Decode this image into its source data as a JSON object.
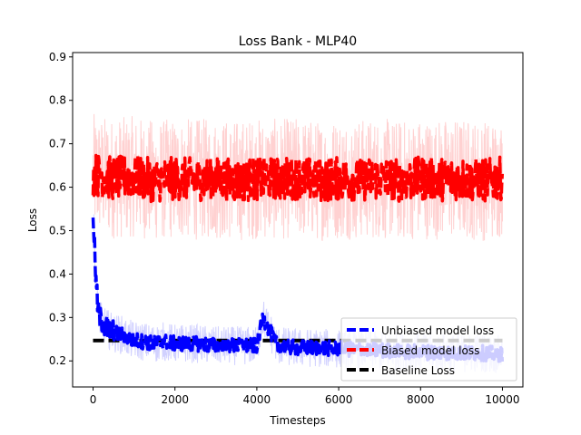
{
  "chart_data": {
    "type": "line",
    "title": "Loss Bank - MLP40",
    "xlabel": "Timesteps",
    "ylabel": "Loss",
    "xlim": [
      -500,
      10500
    ],
    "ylim": [
      0.14,
      0.91
    ],
    "xticks": [
      0,
      2000,
      4000,
      6000,
      8000,
      10000
    ],
    "yticks": [
      0.2,
      0.3,
      0.4,
      0.5,
      0.6,
      0.7,
      0.8,
      0.9
    ],
    "grid": false,
    "legend": {
      "placement": "lower-right"
    },
    "series": [
      {
        "name": "Unbiased model loss",
        "color": "#0000ff",
        "style": "dashed",
        "x": [
          0,
          50,
          100,
          150,
          200,
          300,
          400,
          500,
          700,
          900,
          1200,
          1500,
          1700,
          2000,
          2500,
          3000,
          3500,
          4000,
          4150,
          4500,
          5000,
          5500,
          6000,
          6500,
          7000,
          7500,
          8000,
          8500,
          9000,
          9500,
          10000
        ],
        "values": [
          0.55,
          0.42,
          0.34,
          0.3,
          0.29,
          0.28,
          0.27,
          0.265,
          0.26,
          0.25,
          0.245,
          0.24,
          0.245,
          0.24,
          0.24,
          0.235,
          0.235,
          0.235,
          0.3,
          0.235,
          0.23,
          0.23,
          0.228,
          0.226,
          0.224,
          0.222,
          0.22,
          0.22,
          0.218,
          0.218,
          0.215
        ]
      },
      {
        "name": "Biased model loss",
        "color": "#ff0000",
        "style": "dashed",
        "x": [
          0,
          500,
          1000,
          1500,
          2000,
          2500,
          3000,
          3500,
          4000,
          4500,
          5000,
          5500,
          6000,
          6500,
          7000,
          7500,
          8000,
          8500,
          9000,
          9500,
          10000
        ],
        "values": [
          0.63,
          0.62,
          0.625,
          0.615,
          0.62,
          0.618,
          0.62,
          0.615,
          0.62,
          0.618,
          0.622,
          0.615,
          0.62,
          0.618,
          0.62,
          0.615,
          0.62,
          0.618,
          0.62,
          0.615,
          0.62
        ]
      },
      {
        "name": "Baseline Loss",
        "color": "#000000",
        "style": "dashed",
        "x": [
          0,
          10000
        ],
        "values": [
          0.247,
          0.247
        ]
      }
    ]
  }
}
